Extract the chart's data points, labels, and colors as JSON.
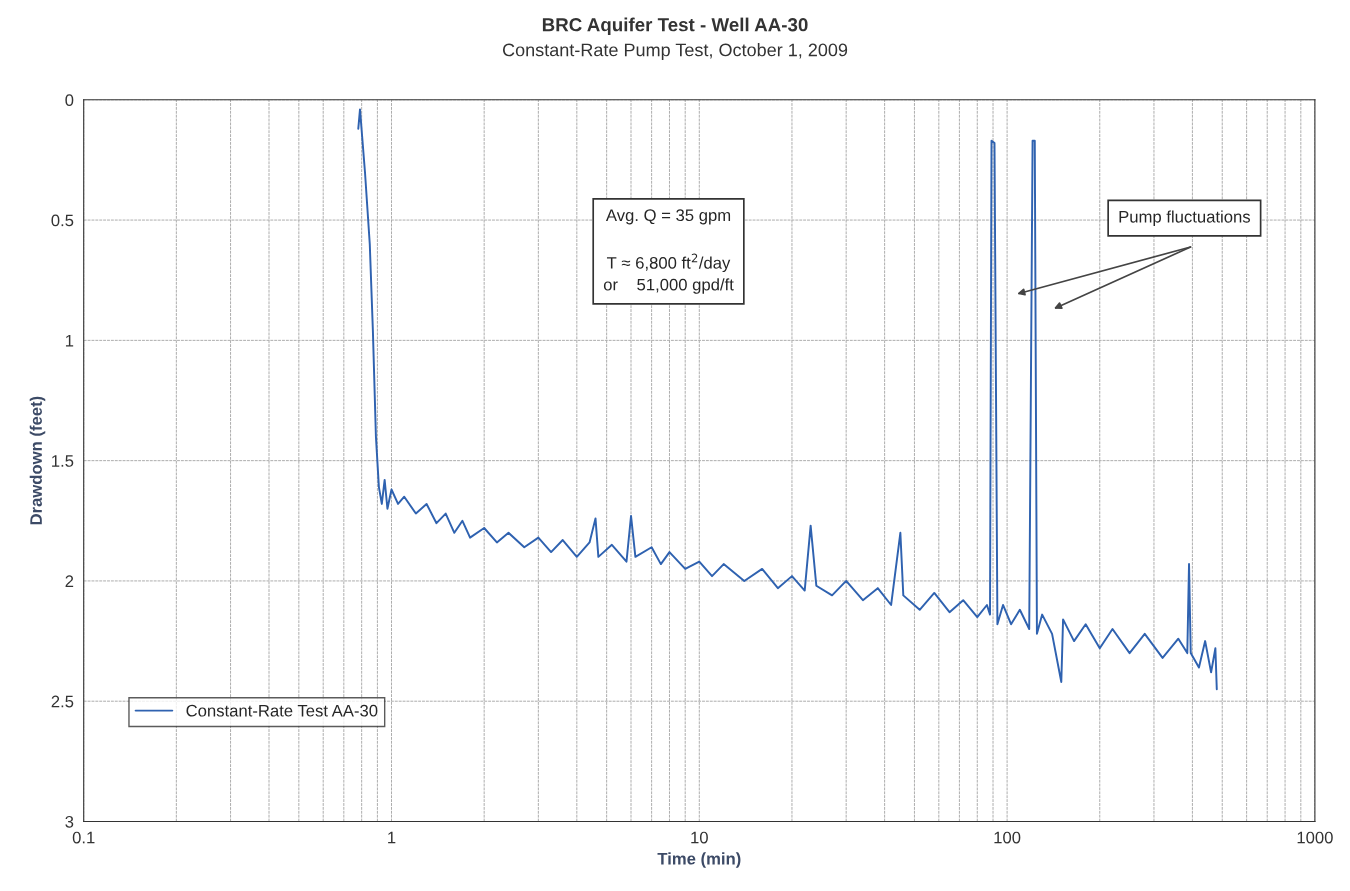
{
  "chart_data": {
    "type": "line",
    "title": "BRC Aquifer Test - Well AA-30",
    "subtitle": "Constant-Rate Pump Test, October 1, 2009",
    "xlabel": "Time (min)",
    "ylabel": "Drawdown (feet)",
    "log": "x",
    "xlim": [
      0.1,
      1000
    ],
    "xticks": [
      0.1,
      1,
      10,
      100,
      1000
    ],
    "ylim": [
      3,
      0
    ],
    "yticks": [
      0,
      0.5,
      1,
      1.5,
      2,
      2.5,
      3
    ],
    "grid": true,
    "legend": "bottom left",
    "marker": "none",
    "line_style": "solid",
    "annotations": [
      "Avg. Q = 35 gpm\n\nT ≈ 6,800 ft$^{2}$/day\nor    51,000 gpd/ft",
      "Pump fluctuations"
    ],
    "series": [
      {
        "name": "Constant-Rate Test AA-30",
        "color": "#2f62b0",
        "x": [
          0.78,
          0.79,
          0.82,
          0.85,
          0.87,
          0.89,
          0.91,
          0.93,
          0.95,
          0.97,
          1.0,
          1.05,
          1.1,
          1.2,
          1.3,
          1.4,
          1.5,
          1.6,
          1.7,
          1.8,
          2.0,
          2.2,
          2.4,
          2.7,
          3.0,
          3.3,
          3.6,
          4.0,
          4.4,
          4.6,
          4.7,
          5.2,
          5.8,
          6.0,
          6.2,
          7.0,
          7.5,
          8.0,
          9.0,
          10,
          11,
          12,
          14,
          16,
          18,
          20,
          22,
          23,
          24,
          27,
          30,
          34,
          38,
          42,
          45,
          46,
          52,
          58,
          65,
          72,
          80,
          86,
          88,
          89,
          91,
          93,
          97,
          103,
          110,
          118,
          121,
          123,
          125,
          130,
          140,
          150,
          152,
          165,
          180,
          200,
          220,
          250,
          280,
          320,
          360,
          385,
          390,
          395,
          420,
          440,
          460,
          475,
          480
        ],
        "values": [
          0.12,
          0.04,
          0.3,
          0.6,
          0.96,
          1.4,
          1.61,
          1.68,
          1.58,
          1.7,
          1.62,
          1.68,
          1.65,
          1.72,
          1.68,
          1.76,
          1.72,
          1.8,
          1.75,
          1.82,
          1.78,
          1.84,
          1.8,
          1.86,
          1.82,
          1.88,
          1.83,
          1.9,
          1.84,
          1.74,
          1.9,
          1.85,
          1.92,
          1.73,
          1.9,
          1.86,
          1.93,
          1.88,
          1.95,
          1.92,
          1.98,
          1.93,
          2.0,
          1.95,
          2.03,
          1.98,
          2.04,
          1.77,
          2.02,
          2.06,
          2.0,
          2.08,
          2.03,
          2.1,
          1.8,
          2.06,
          2.12,
          2.05,
          2.13,
          2.08,
          2.15,
          2.1,
          2.14,
          0.17,
          0.18,
          2.18,
          2.1,
          2.18,
          2.12,
          2.2,
          0.17,
          0.17,
          2.22,
          2.14,
          2.22,
          2.42,
          2.16,
          2.25,
          2.18,
          2.28,
          2.2,
          2.3,
          2.22,
          2.32,
          2.24,
          2.3,
          1.93,
          2.3,
          2.36,
          2.25,
          2.38,
          2.28,
          2.45
        ]
      }
    ]
  }
}
